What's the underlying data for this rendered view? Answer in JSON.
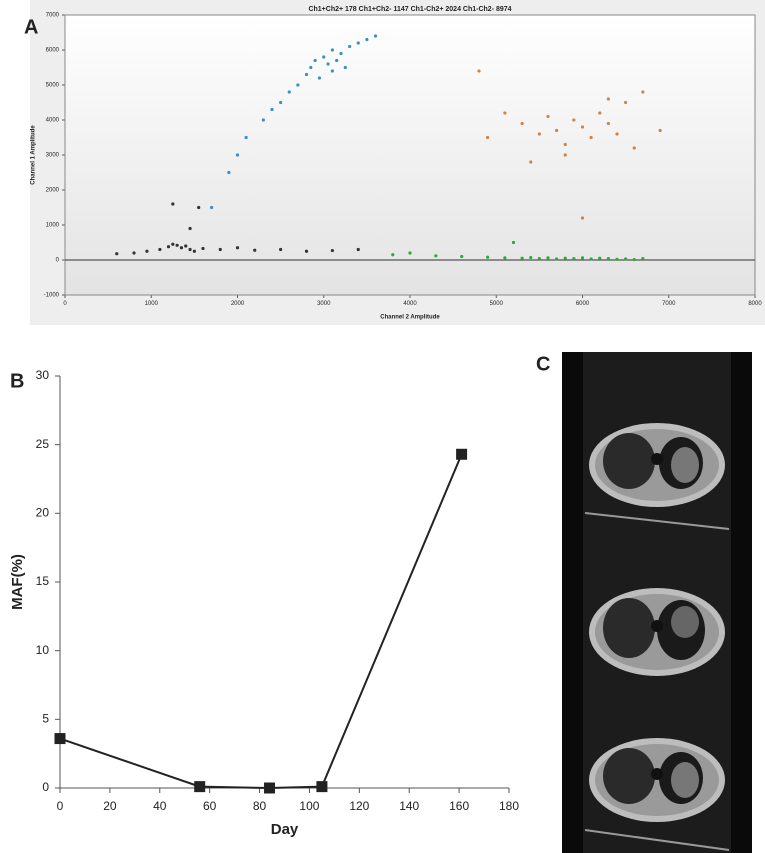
{
  "chart_data": [
    {
      "type": "scatter",
      "panel": "A",
      "title": "Ch1+Ch2+ 178  Ch1+Ch2- 1147  Ch1-Ch2+ 2024  Ch1-Ch2- 8974",
      "xlabel": "Channel 2 Amplitude",
      "ylabel": "Channel 1 Amplitude",
      "xlim": [
        0,
        8000
      ],
      "xticks": [
        0,
        1000,
        2000,
        3000,
        4000,
        5000,
        6000,
        7000,
        8000
      ],
      "ylim": [
        -1000,
        7000
      ],
      "yticks": [
        -1000,
        0,
        1000,
        2000,
        3000,
        4000,
        5000,
        6000,
        7000
      ],
      "series": [
        {
          "color": "#333333",
          "x": [
            600,
            800,
            950,
            1100,
            1200,
            1250,
            1300,
            1350,
            1400,
            1450,
            1500,
            1600,
            1800,
            2000,
            2200,
            2500,
            2800,
            3100,
            3400,
            1550,
            1450,
            1250
          ],
          "y": [
            180,
            200,
            250,
            300,
            380,
            450,
            420,
            350,
            400,
            300,
            250,
            330,
            300,
            350,
            280,
            300,
            250,
            270,
            300,
            1500,
            900,
            1600
          ]
        },
        {
          "color": "#3a8fc8",
          "x": [
            1700,
            1900,
            2000,
            2100,
            2300,
            2500,
            2600,
            2700,
            2800,
            2850,
            2900,
            3000,
            3050,
            3100,
            3150,
            3200,
            3250,
            3300,
            3400,
            3500,
            2950,
            3100,
            3600,
            2400
          ],
          "y": [
            1500,
            2500,
            3000,
            3500,
            4000,
            4500,
            4800,
            5000,
            5300,
            5500,
            5700,
            5800,
            5600,
            6000,
            5700,
            5900,
            5500,
            6100,
            6200,
            6300,
            5200,
            5400,
            6400,
            4300
          ]
        },
        {
          "color": "#c8874a",
          "x": [
            4900,
            5100,
            5300,
            5500,
            5600,
            5700,
            5800,
            5900,
            6000,
            6100,
            6200,
            6300,
            6400,
            6500,
            6600,
            6700,
            5400,
            5800,
            6300,
            6900,
            4800,
            6000
          ],
          "y": [
            3500,
            4200,
            3900,
            3600,
            4100,
            3700,
            3300,
            4000,
            3800,
            3500,
            4200,
            3900,
            3600,
            4500,
            3200,
            4800,
            2800,
            3000,
            4600,
            3700,
            5400,
            1200
          ]
        },
        {
          "color": "#2eaa3a",
          "x": [
            3800,
            4000,
            4300,
            4600,
            4900,
            5100,
            5300,
            5400,
            5500,
            5600,
            5700,
            5800,
            5900,
            6000,
            6100,
            6200,
            6300,
            6400,
            6500,
            6600,
            6700,
            5200
          ],
          "y": [
            150,
            200,
            120,
            100,
            80,
            60,
            50,
            70,
            40,
            60,
            30,
            50,
            40,
            60,
            30,
            50,
            40,
            20,
            30,
            10,
            40,
            500
          ]
        }
      ]
    },
    {
      "type": "line",
      "panel": "B",
      "xlabel": "Day",
      "ylabel": "MAF(%)",
      "x": [
        0,
        56,
        84,
        105,
        161
      ],
      "values": [
        3.6,
        0.1,
        0,
        0.1,
        24.3
      ],
      "color": "#222222",
      "xlim": [
        0,
        180
      ],
      "xticks": [
        0,
        20,
        40,
        60,
        80,
        100,
        120,
        140,
        160,
        180
      ],
      "ylim": [
        0,
        30
      ],
      "yticks": [
        0,
        5,
        10,
        15,
        20,
        25,
        30
      ]
    }
  ],
  "image_panel": {
    "label": "C"
  }
}
